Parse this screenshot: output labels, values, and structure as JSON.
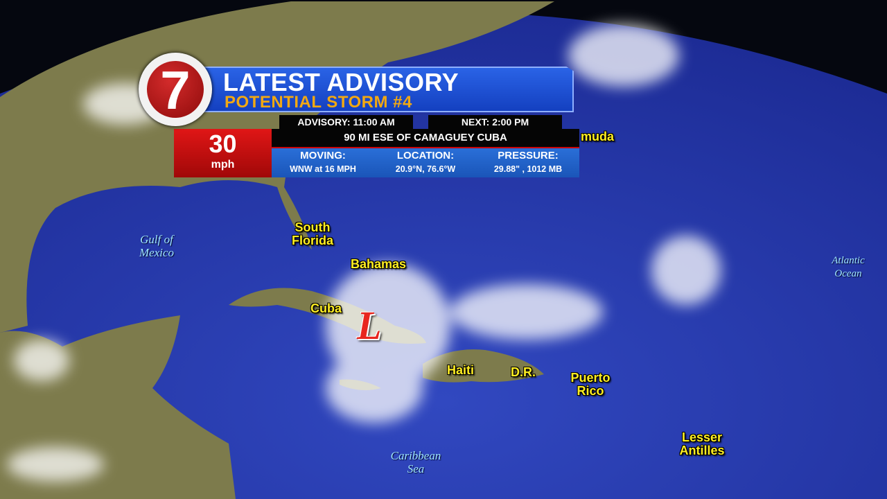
{
  "logo": {
    "text": "7"
  },
  "banner": {
    "title": "LATEST ADVISORY",
    "subtitle": "POTENTIAL STORM #4"
  },
  "times": {
    "advisory": "ADVISORY: 11:00 AM",
    "next": "NEXT: 2:00 PM"
  },
  "storm": {
    "wind_speed": "30",
    "wind_unit": "mph",
    "location_text": "90 MI ESE OF CAMAGUEY CUBA",
    "symbol": "L",
    "moving_label": "MOVING:",
    "moving": "WNW at 16 MPH",
    "location_label": "LOCATION:",
    "location": "20.9°N, 76.6°W",
    "pressure_label": "PRESSURE:",
    "pressure": "29.88\" , 1012 MB"
  },
  "labels": {
    "bermuda": "muda",
    "south_florida": "South Florida",
    "bahamas": "Bahamas",
    "cuba": "Cuba",
    "haiti": "Haiti",
    "dr": "D.R.",
    "puerto_rico": "Puerto Rico",
    "lesser_antilles": "Lesser Antilles"
  },
  "water": {
    "gulf": "Gulf of Mexico",
    "atlantic": "Atlantic Ocean",
    "caribbean": "Caribbean Sea"
  },
  "colors": {
    "ocean": "#2a3fb0",
    "land": "#7a7a4a",
    "storm": "#e8261e",
    "banner": "#1f55d8",
    "label": "#ffee22"
  }
}
